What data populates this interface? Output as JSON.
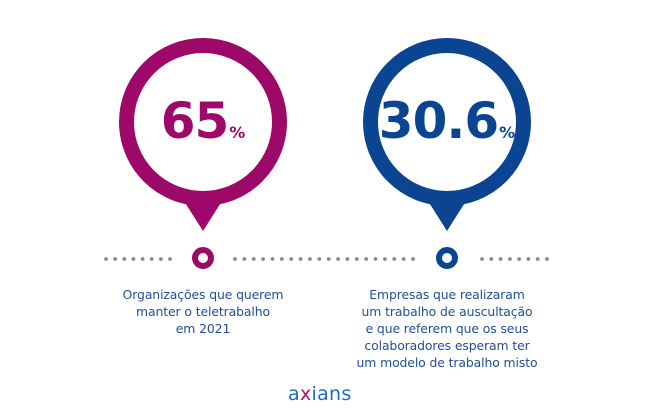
{
  "colors": {
    "magenta": "#9e0868",
    "navy": "#0b4591",
    "caption_text": "#1f4f94",
    "dots": "#8a8a8a",
    "logo_blue": "#1e6bc4",
    "logo_magenta": "#b0116e"
  },
  "stats": [
    {
      "value": "65",
      "unit": "%",
      "color": "#9e0868",
      "caption_lines": [
        "Organizações que querem",
        "manter o teletrabalho",
        "em 2021"
      ]
    },
    {
      "value": "30.6",
      "unit": "%",
      "color": "#0b4591",
      "caption_lines": [
        "Empresas que realizaram",
        "um trabalho de auscultação",
        "e que referem que os seus",
        "colaboradores esperam ter",
        "um modelo de trabalho misto"
      ]
    }
  ],
  "timeline": {
    "segments": [
      {
        "from": 106,
        "to": 170,
        "dots": 8
      },
      {
        "from": 235,
        "to": 413,
        "dots": 20
      },
      {
        "from": 482,
        "to": 547,
        "dots": 8
      }
    ]
  },
  "logo": {
    "pre": "a",
    "x": "x",
    "post": "ians"
  }
}
